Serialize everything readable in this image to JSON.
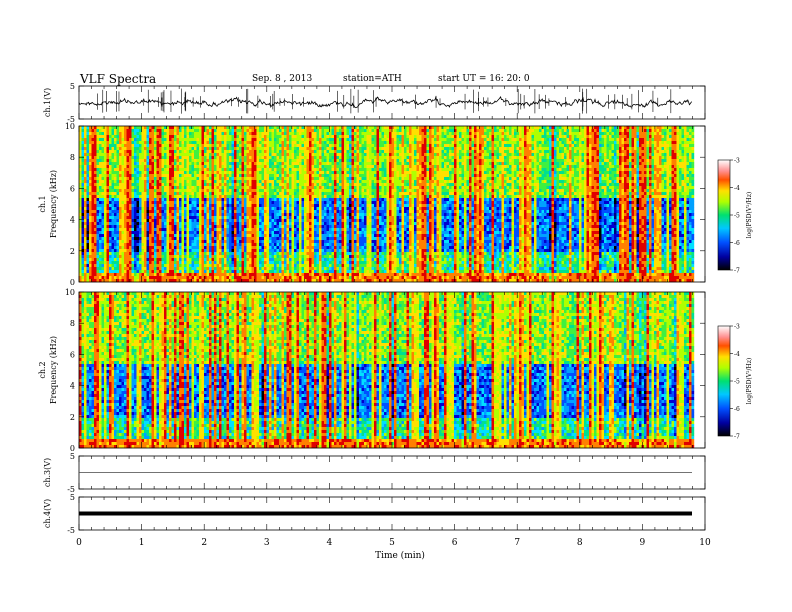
{
  "header": {
    "title": "VLF  Spectra",
    "date": "Sep. 8  , 2013",
    "station": "station=ATH",
    "start": "start  UT  =    16: 20: 0"
  },
  "chart_data": [
    {
      "type": "line",
      "name": "ch1-waveform",
      "ylabel": "ch.1(V)",
      "ylim": [
        -5,
        5
      ],
      "yticks": [
        "5",
        "-5"
      ],
      "xlim": [
        0,
        10
      ],
      "baseline": 0
    },
    {
      "type": "heatmap",
      "name": "ch1-spectrogram",
      "ylabel_top": "ch.1",
      "ylabel": "Frequency  (kHz)",
      "ylim": [
        0,
        10
      ],
      "yticks": [
        "0",
        "2",
        "4",
        "6",
        "8",
        "10"
      ],
      "xlim": [
        0,
        9.8
      ],
      "colorbar": {
        "label": "log(PSD(V²/Hz)",
        "range": [
          -7,
          -3
        ],
        "ticks": [
          "-3",
          "-4",
          "-5",
          "-6",
          "-7"
        ]
      }
    },
    {
      "type": "heatmap",
      "name": "ch2-spectrogram",
      "ylabel_top": "ch.2",
      "ylabel": "Frequency  (kHz)",
      "ylim": [
        0,
        10
      ],
      "yticks": [
        "0",
        "2",
        "4",
        "6",
        "8",
        "10"
      ],
      "xlim": [
        0,
        9.8
      ],
      "colorbar": {
        "label": "log(PSD(V²/Hz)",
        "range": [
          -7,
          -3
        ],
        "ticks": [
          "-3",
          "-4",
          "-5",
          "-6",
          "-7"
        ]
      }
    },
    {
      "type": "line",
      "name": "ch3-waveform",
      "ylabel": "ch.3(V)",
      "ylim": [
        -5,
        5
      ],
      "yticks": [
        "5",
        "-5"
      ],
      "baseline": 0
    },
    {
      "type": "line",
      "name": "ch4-waveform",
      "ylabel": "ch.4(V)",
      "ylim": [
        -5,
        5
      ],
      "yticks": [
        "5",
        "-5"
      ],
      "baseline": 0
    }
  ],
  "xaxis": {
    "label": "Time  (min)",
    "ticks": [
      "0",
      "1",
      "2",
      "3",
      "4",
      "5",
      "6",
      "7",
      "8",
      "9",
      "10"
    ],
    "range": [
      0,
      10
    ]
  }
}
